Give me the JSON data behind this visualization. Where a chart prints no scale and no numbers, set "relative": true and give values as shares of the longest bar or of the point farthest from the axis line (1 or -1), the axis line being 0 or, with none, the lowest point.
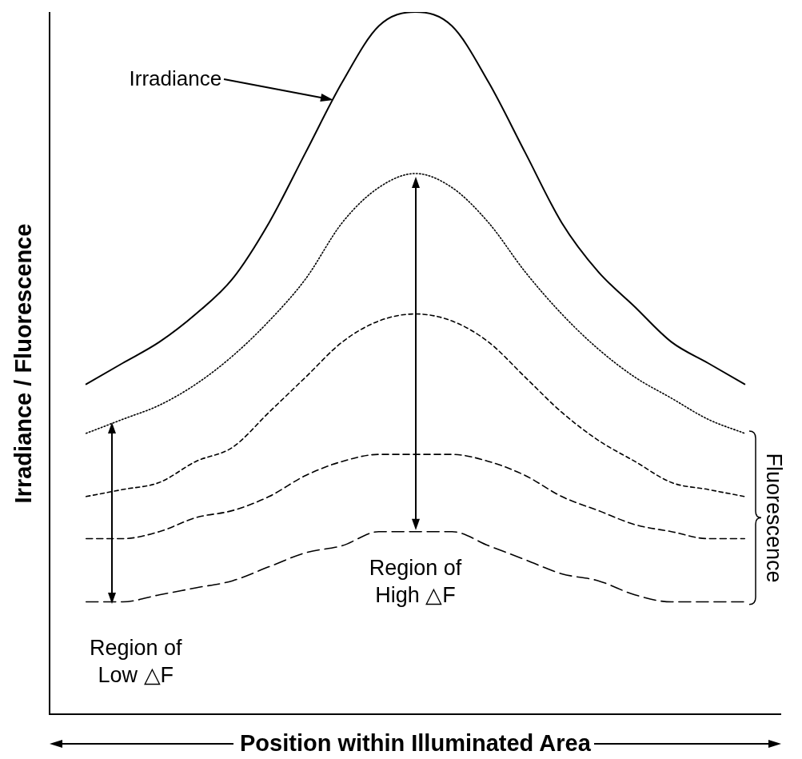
{
  "chart_data": {
    "type": "line",
    "relative": true,
    "legend": false,
    "grid": false,
    "marker": "none",
    "xlabel": "Position within Illuminated Area",
    "ylabel": "Irradiance / Fluorescence",
    "categories": [
      null,
      null,
      null,
      null,
      null,
      null,
      null,
      null,
      null,
      null,
      null,
      null,
      null,
      null,
      null,
      null,
      null,
      null,
      null,
      null,
      null
    ],
    "series": [
      {
        "color": "#000000",
        "line_style": "solid",
        "values": [
          null,
          0.47,
          0.5,
          0.53,
          0.57,
          0.62,
          0.7,
          0.8,
          0.9,
          0.98,
          1,
          0.98,
          0.9,
          0.8,
          0.7,
          0.63,
          0.58,
          0.53,
          0.5,
          0.47,
          null
        ]
      },
      {
        "color": "#000000",
        "line_style": "dotted",
        "values": [
          null,
          0.4,
          0.42,
          0.44,
          0.47,
          0.51,
          0.56,
          0.62,
          0.7,
          0.75,
          0.77,
          0.75,
          0.7,
          0.63,
          0.57,
          0.52,
          0.48,
          0.45,
          0.42,
          0.4,
          null
        ]
      },
      {
        "color": "#000000",
        "line_style": "dashed",
        "values": [
          null,
          0.31,
          0.32,
          0.33,
          0.36,
          0.38,
          0.43,
          0.48,
          0.53,
          0.56,
          0.57,
          0.56,
          0.53,
          0.48,
          0.43,
          0.39,
          0.36,
          0.33,
          0.32,
          0.31,
          null
        ]
      },
      {
        "color": "#000000",
        "line_style": "dashed",
        "values": [
          null,
          0.25,
          0.25,
          0.26,
          0.28,
          0.29,
          0.31,
          0.34,
          0.36,
          0.37,
          0.37,
          0.37,
          0.36,
          0.34,
          0.31,
          0.29,
          0.27,
          0.26,
          0.25,
          0.25,
          null
        ]
      },
      {
        "color": "#000000",
        "line_style": "dashed",
        "values": [
          null,
          0.16,
          0.16,
          0.17,
          0.18,
          0.19,
          0.21,
          0.23,
          0.24,
          0.26,
          0.26,
          0.26,
          0.24,
          0.22,
          0.2,
          0.19,
          0.17,
          0.16,
          0.16,
          0.16,
          null
        ]
      }
    ],
    "annotations": [
      "Region of Low △F",
      "Region of High △F",
      "Fluorescence",
      "Irradiance"
    ]
  }
}
